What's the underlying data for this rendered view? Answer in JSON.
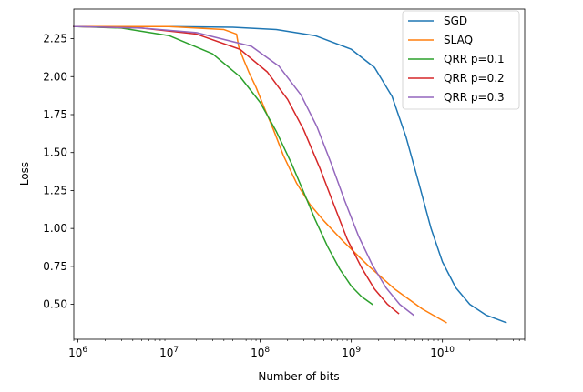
{
  "chart_data": {
    "type": "line",
    "title": "",
    "xlabel": "Number of bits",
    "ylabel": "Loss",
    "xscale": "log",
    "xlim": [
      900000,
      80000000000
    ],
    "ylim": [
      0.27,
      2.445
    ],
    "x_ticks": [
      {
        "value": 1000000,
        "base": "10",
        "exp": "6"
      },
      {
        "value": 10000000,
        "base": "10",
        "exp": "7"
      },
      {
        "value": 100000000,
        "base": "10",
        "exp": "8"
      },
      {
        "value": 1000000000,
        "base": "10",
        "exp": "9"
      },
      {
        "value": 10000000000,
        "base": "10",
        "exp": "10"
      }
    ],
    "y_ticks": [
      {
        "value": 0.5,
        "label": "0.50"
      },
      {
        "value": 0.75,
        "label": "0.75"
      },
      {
        "value": 1.0,
        "label": "1.00"
      },
      {
        "value": 1.25,
        "label": "1.25"
      },
      {
        "value": 1.5,
        "label": "1.50"
      },
      {
        "value": 1.75,
        "label": "1.75"
      },
      {
        "value": 2.0,
        "label": "2.00"
      },
      {
        "value": 2.25,
        "label": "2.25"
      }
    ],
    "legend_position": "top-right",
    "series": [
      {
        "name": "SGD",
        "color": "#1f77b4",
        "x": [
          900000,
          10000000,
          50000000,
          150000000,
          400000000,
          1000000000,
          1800000000,
          2800000000,
          4000000000,
          5500000000,
          7500000000,
          10000000000,
          14000000000,
          20000000000,
          30000000000,
          50000000000
        ],
        "y": [
          2.33,
          2.33,
          2.325,
          2.31,
          2.27,
          2.18,
          2.06,
          1.87,
          1.6,
          1.3,
          1.0,
          0.78,
          0.61,
          0.5,
          0.43,
          0.38
        ]
      },
      {
        "name": "SLAQ",
        "color": "#ff7f0e",
        "x": [
          900000,
          10000000,
          40000000,
          55000000,
          58000000,
          65000000,
          75000000,
          90000000,
          110000000,
          140000000,
          180000000,
          250000000,
          350000000,
          500000000,
          800000000,
          1500000000,
          3000000000,
          6000000000,
          11000000000
        ],
        "y": [
          2.33,
          2.33,
          2.31,
          2.28,
          2.2,
          2.12,
          2.03,
          1.93,
          1.8,
          1.65,
          1.48,
          1.3,
          1.16,
          1.05,
          0.92,
          0.76,
          0.6,
          0.47,
          0.38
        ]
      },
      {
        "name": "QRR p=0.1",
        "color": "#2ca02c",
        "x": [
          900000,
          3000000,
          10000000,
          30000000,
          60000000,
          100000000,
          150000000,
          220000000,
          300000000,
          400000000,
          550000000,
          750000000,
          1000000000,
          1300000000,
          1700000000
        ],
        "y": [
          2.33,
          2.32,
          2.27,
          2.15,
          2.0,
          1.83,
          1.64,
          1.43,
          1.24,
          1.06,
          0.88,
          0.73,
          0.62,
          0.55,
          0.5
        ]
      },
      {
        "name": "QRR p=0.2",
        "color": "#d62728",
        "x": [
          900000,
          5000000,
          20000000,
          60000000,
          120000000,
          200000000,
          300000000,
          450000000,
          650000000,
          900000000,
          1300000000,
          1800000000,
          2500000000,
          3300000000
        ],
        "y": [
          2.33,
          2.32,
          2.28,
          2.18,
          2.03,
          1.85,
          1.65,
          1.4,
          1.15,
          0.93,
          0.74,
          0.6,
          0.5,
          0.44
        ]
      },
      {
        "name": "QRR p=0.3",
        "color": "#9467bd",
        "x": [
          900000,
          5000000,
          20000000,
          80000000,
          160000000,
          280000000,
          420000000,
          600000000,
          850000000,
          1200000000,
          1700000000,
          2400000000,
          3400000000,
          4800000000
        ],
        "y": [
          2.33,
          2.32,
          2.29,
          2.2,
          2.07,
          1.88,
          1.67,
          1.43,
          1.18,
          0.95,
          0.76,
          0.61,
          0.5,
          0.43
        ]
      }
    ]
  }
}
